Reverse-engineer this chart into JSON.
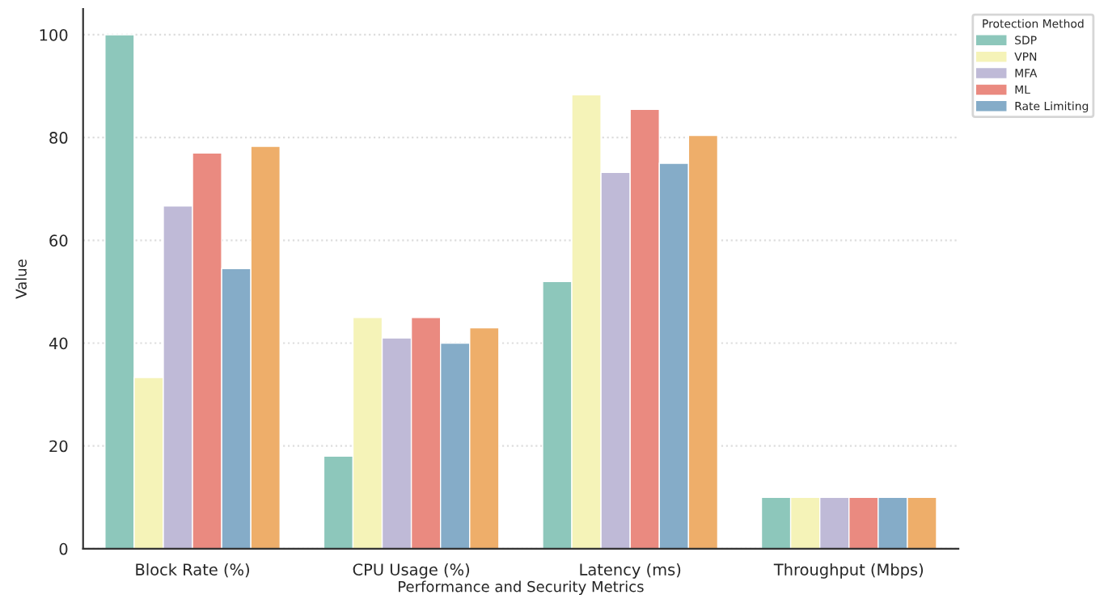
{
  "chart_data": {
    "type": "bar",
    "xlabel": "Performance and Security Metrics",
    "ylabel": "Value",
    "legend_title": "Protection Method",
    "categories": [
      "Block Rate (%)",
      "CPU Usage (%)",
      "Latency (ms)",
      "Throughput (Mbps)"
    ],
    "series": [
      {
        "name": "SDP",
        "color": "#8dc7bb",
        "values": [
          100,
          18,
          52,
          10
        ]
      },
      {
        "name": "VPN",
        "color": "#f5f3b8",
        "values": [
          33.3,
          45,
          88.3,
          10
        ]
      },
      {
        "name": "MFA",
        "color": "#bfbad7",
        "values": [
          66.7,
          41,
          73.2,
          10
        ]
      },
      {
        "name": "ML",
        "color": "#ea8a80",
        "values": [
          77,
          45,
          85.5,
          10
        ]
      },
      {
        "name": "Rate Limiting",
        "color": "#85acc8",
        "values": [
          54.5,
          40,
          75,
          10
        ]
      },
      {
        "color": "#eeae6a",
        "values": [
          78.3,
          43,
          80.4,
          10
        ]
      }
    ],
    "ylim": [
      0,
      105
    ],
    "yticks": [
      0,
      20,
      40,
      60,
      80,
      100
    ],
    "grid": "y",
    "legend": "top right"
  }
}
